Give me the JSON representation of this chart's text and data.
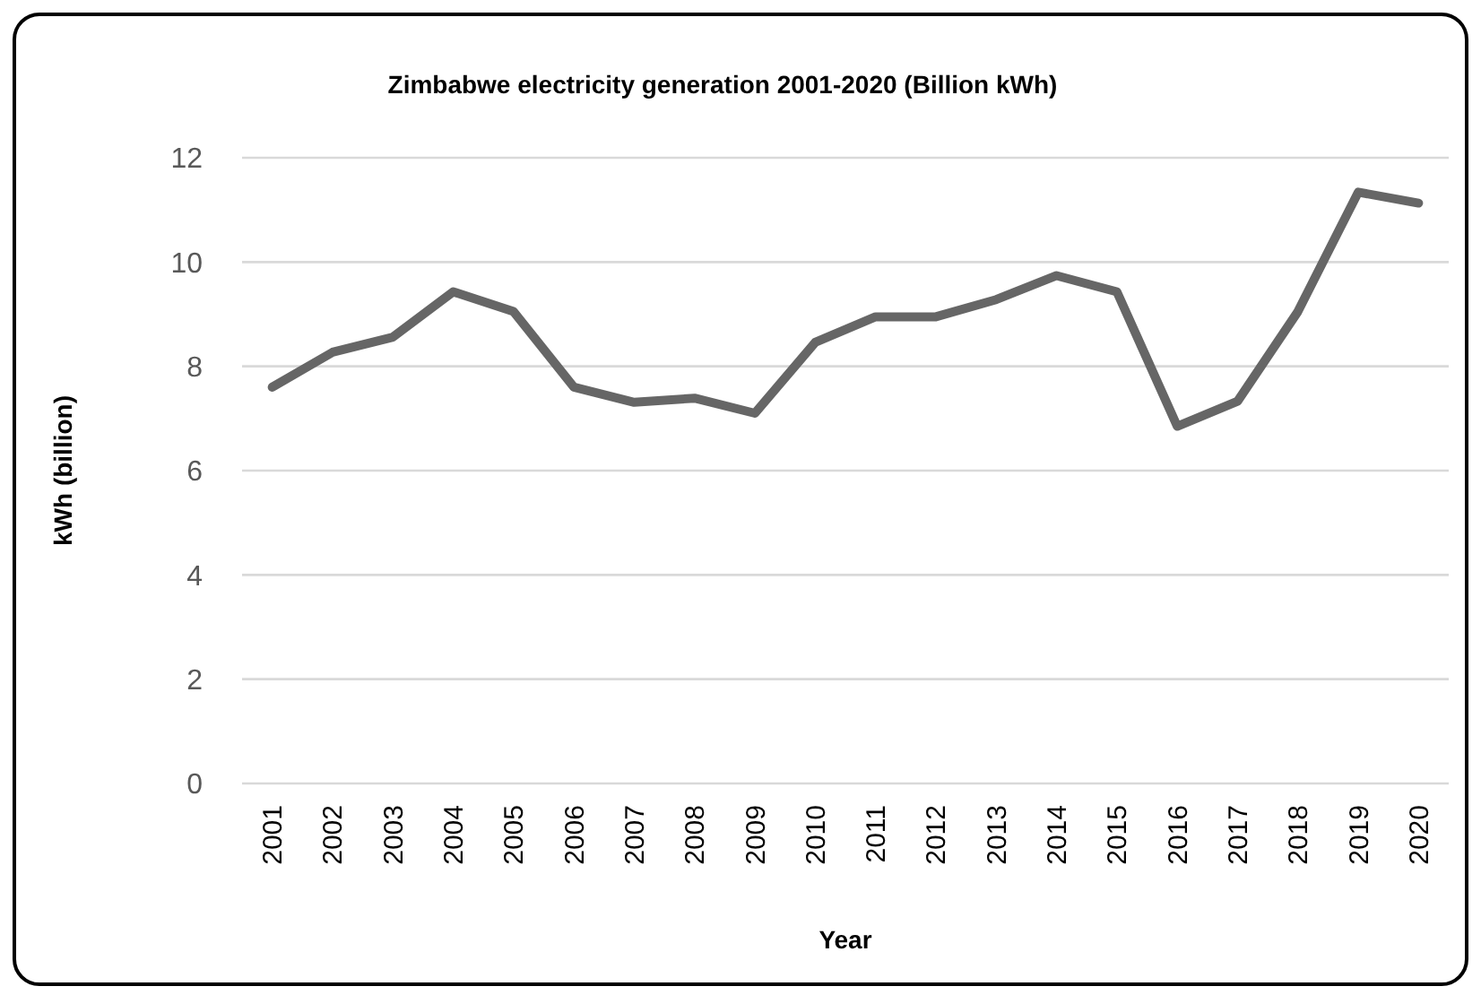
{
  "chart_data": {
    "type": "line",
    "title": "Zimbabwe electricity generation 2001-2020 (Billion kWh)",
    "xlabel": "Year",
    "ylabel": "kWh (billion)",
    "categories": [
      "2001",
      "2002",
      "2003",
      "2004",
      "2005",
      "2006",
      "2007",
      "2008",
      "2009",
      "2010",
      "2011",
      "2012",
      "2013",
      "2014",
      "2015",
      "2016",
      "2017",
      "2018",
      "2019",
      "2020"
    ],
    "series": [
      {
        "color": "#666666",
        "values": [
          7.6,
          8.27,
          8.56,
          9.43,
          9.05,
          7.6,
          7.31,
          7.39,
          7.1,
          8.46,
          8.95,
          8.95,
          9.28,
          9.74,
          9.43,
          6.85,
          7.33,
          9.05,
          11.34,
          11.13
        ]
      }
    ],
    "ylim": [
      0,
      12
    ],
    "yticks": [
      0,
      2,
      4,
      6,
      8,
      10,
      12
    ],
    "grid": "y",
    "marker": "none",
    "line_style": "solid"
  }
}
